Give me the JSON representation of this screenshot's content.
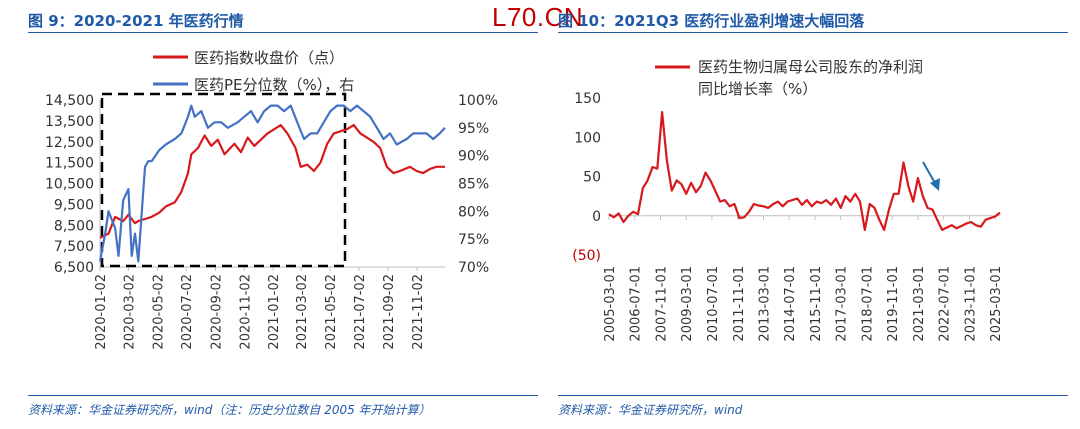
{
  "watermark": "L70.CN",
  "left": {
    "title": "图 9：2020-2021 年医药行情",
    "source": "资料来源：华金证券研究所，wind（注：历史分位数自 2005 年开始计算）",
    "chart_data": {
      "type": "line",
      "y_left": {
        "ticks": [
          "14,500",
          "13,500",
          "12,500",
          "11,500",
          "10,500",
          "9,500",
          "8,500",
          "7,500",
          "6,500"
        ],
        "range": [
          6500,
          14500
        ]
      },
      "y_right": {
        "ticks": [
          "100%",
          "95%",
          "90%",
          "85%",
          "80%",
          "75%",
          "70%"
        ],
        "range": [
          70,
          100
        ]
      },
      "x_ticks": [
        "2020-01-02",
        "2020-03-02",
        "2020-05-02",
        "2020-07-02",
        "2020-09-02",
        "2020-11-02",
        "2021-01-02",
        "2021-03-02",
        "2021-05-02",
        "2021-07-02",
        "2021-09-02",
        "2021-11-02"
      ],
      "series": [
        {
          "name": "医药指数收盘价（点）",
          "color": "#d7191c",
          "axis": "left",
          "x": [
            "2020-01-02",
            "2020-01-20",
            "2020-02-03",
            "2020-02-20",
            "2020-03-02",
            "2020-03-16",
            "2020-03-23",
            "2020-04-06",
            "2020-04-20",
            "2020-05-06",
            "2020-05-20",
            "2020-06-08",
            "2020-06-22",
            "2020-07-06",
            "2020-07-13",
            "2020-07-27",
            "2020-08-10",
            "2020-08-24",
            "2020-09-07",
            "2020-09-21",
            "2020-10-12",
            "2020-10-26",
            "2020-11-09",
            "2020-11-23",
            "2020-12-07",
            "2020-12-21",
            "2021-01-04",
            "2021-01-18",
            "2021-02-01",
            "2021-02-18",
            "2021-03-01",
            "2021-03-15",
            "2021-03-29",
            "2021-04-12",
            "2021-04-26",
            "2021-05-10",
            "2021-05-24",
            "2021-06-07",
            "2021-06-21",
            "2021-07-05",
            "2021-07-19",
            "2021-08-02",
            "2021-08-16",
            "2021-08-30",
            "2021-09-13",
            "2021-09-27",
            "2021-10-18",
            "2021-11-01",
            "2021-11-15",
            "2021-11-29",
            "2021-12-13",
            "2021-12-31"
          ],
          "y": [
            7900,
            8100,
            8900,
            8700,
            9000,
            8600,
            8700,
            8800,
            8900,
            9100,
            9400,
            9600,
            10100,
            11000,
            11900,
            12200,
            12800,
            12300,
            12600,
            11900,
            12400,
            12000,
            12700,
            12300,
            12600,
            12900,
            13100,
            13300,
            12900,
            12200,
            11300,
            11400,
            11100,
            11500,
            12400,
            12900,
            13000,
            13100,
            13300,
            12900,
            12700,
            12500,
            12200,
            11300,
            11000,
            11100,
            11300,
            11100,
            11000,
            11200,
            11300,
            11300
          ]
        },
        {
          "name": "医药PE分位数（%），右",
          "color": "#4472c4",
          "axis": "right",
          "x": [
            "2020-01-02",
            "2020-01-13",
            "2020-01-20",
            "2020-02-03",
            "2020-02-10",
            "2020-02-20",
            "2020-03-02",
            "2020-03-09",
            "2020-03-16",
            "2020-03-23",
            "2020-04-06",
            "2020-04-13",
            "2020-04-20",
            "2020-05-06",
            "2020-05-20",
            "2020-06-08",
            "2020-06-22",
            "2020-07-06",
            "2020-07-13",
            "2020-07-20",
            "2020-08-03",
            "2020-08-17",
            "2020-08-31",
            "2020-09-14",
            "2020-09-28",
            "2020-10-19",
            "2020-11-02",
            "2020-11-16",
            "2020-11-30",
            "2020-12-14",
            "2020-12-28",
            "2021-01-11",
            "2021-01-25",
            "2021-02-08",
            "2021-02-22",
            "2021-03-08",
            "2021-03-22",
            "2021-04-05",
            "2021-04-19",
            "2021-05-03",
            "2021-05-17",
            "2021-05-31",
            "2021-06-14",
            "2021-06-28",
            "2021-07-12",
            "2021-07-26",
            "2021-08-09",
            "2021-08-23",
            "2021-09-06",
            "2021-09-20",
            "2021-10-11",
            "2021-10-25",
            "2021-11-08",
            "2021-11-22",
            "2021-12-06",
            "2021-12-20",
            "2021-12-31"
          ],
          "y": [
            71,
            76,
            80,
            77,
            72,
            82,
            84,
            72,
            76,
            71,
            88,
            89,
            89,
            91,
            92,
            93,
            94,
            97,
            99,
            97,
            98,
            95,
            96,
            96,
            95,
            96,
            97,
            98,
            96,
            98,
            99,
            99,
            98,
            99,
            96,
            93,
            94,
            94,
            96,
            98,
            99,
            99,
            98,
            99,
            98,
            97,
            95,
            93,
            94,
            92,
            93,
            94,
            94,
            94,
            93,
            94,
            95
          ]
        }
      ],
      "legend": "top-center"
    }
  },
  "right": {
    "title": "图 10：2021Q3 医药行业盈利增速大幅回落",
    "source": "资料来源：华金证券研究所，wind",
    "chart_data": {
      "type": "line",
      "y_ticks": [
        "150",
        "100",
        "50",
        "0",
        "(50)"
      ],
      "ylim": [
        -50,
        150
      ],
      "x_ticks": [
        "2005-03-01",
        "2006-07-01",
        "2007-11-01",
        "2009-03-01",
        "2010-07-01",
        "2011-11-01",
        "2013-03-01",
        "2014-07-01",
        "2015-11-01",
        "2017-03-01",
        "2018-07-01",
        "2019-11-01",
        "2021-03-01",
        "2022-07-01",
        "2023-11-01",
        "2025-03-01"
      ],
      "series": [
        {
          "name": "医药生物归属母公司股东的净利润同比增长率（%）",
          "name_lines": [
            "医药生物归属母公司股东的净利润",
            "同比增长率（%）"
          ],
          "color": "#d7191c",
          "x": [
            "2005-03-01",
            "2005-06-01",
            "2005-09-01",
            "2005-12-01",
            "2006-03-01",
            "2006-06-01",
            "2006-09-01",
            "2006-12-01",
            "2007-03-01",
            "2007-06-01",
            "2007-09-01",
            "2007-12-01",
            "2008-03-01",
            "2008-06-01",
            "2008-09-01",
            "2008-12-01",
            "2009-03-01",
            "2009-06-01",
            "2009-09-01",
            "2009-12-01",
            "2010-03-01",
            "2010-06-01",
            "2010-09-01",
            "2010-12-01",
            "2011-03-01",
            "2011-06-01",
            "2011-09-01",
            "2011-12-01",
            "2012-03-01",
            "2012-06-01",
            "2012-09-01",
            "2012-12-01",
            "2013-03-01",
            "2013-06-01",
            "2013-09-01",
            "2013-12-01",
            "2014-03-01",
            "2014-06-01",
            "2014-09-01",
            "2014-12-01",
            "2015-03-01",
            "2015-06-01",
            "2015-09-01",
            "2015-12-01",
            "2016-03-01",
            "2016-06-01",
            "2016-09-01",
            "2016-12-01",
            "2017-03-01",
            "2017-06-01",
            "2017-09-01",
            "2017-12-01",
            "2018-03-01",
            "2018-06-01",
            "2018-09-01",
            "2018-12-01",
            "2019-03-01",
            "2019-06-01",
            "2019-09-01",
            "2019-12-01",
            "2020-03-01",
            "2020-06-01",
            "2020-09-01",
            "2020-12-01",
            "2021-03-01",
            "2021-06-01",
            "2021-09-01",
            "2021-12-01",
            "2022-03-01",
            "2022-06-01",
            "2022-09-01",
            "2022-12-01",
            "2023-03-01",
            "2023-06-01",
            "2023-09-01",
            "2023-12-01",
            "2024-03-01",
            "2024-06-01",
            "2024-09-01",
            "2024-12-01",
            "2025-03-01",
            "2025-06-01"
          ],
          "y": [
            2,
            -2,
            3,
            -8,
            0,
            5,
            2,
            35,
            45,
            62,
            60,
            132,
            70,
            32,
            45,
            40,
            28,
            42,
            30,
            38,
            55,
            45,
            32,
            18,
            20,
            12,
            15,
            -3,
            -2,
            5,
            15,
            13,
            12,
            10,
            15,
            18,
            12,
            18,
            20,
            22,
            14,
            20,
            12,
            18,
            16,
            20,
            14,
            22,
            10,
            25,
            18,
            28,
            18,
            -18,
            15,
            10,
            -5,
            -18,
            8,
            28,
            28,
            68,
            38,
            18,
            48,
            25,
            10,
            8,
            -5,
            -18,
            -15,
            -12,
            -16,
            -13,
            -10,
            -8,
            -12,
            -14,
            -5,
            -3,
            -1,
            4
          ]
        }
      ],
      "annotation": "arrow",
      "legend": "top-center"
    }
  }
}
